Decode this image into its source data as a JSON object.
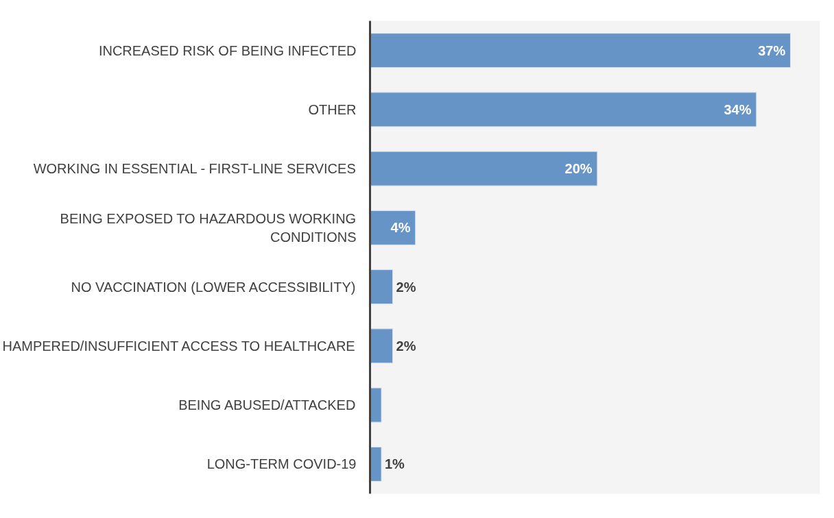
{
  "chart_data": {
    "type": "bar",
    "orientation": "horizontal",
    "color": "#6794c6",
    "categories": [
      "INCREASED RISK OF BEING INFECTED",
      "OTHER",
      "WORKING IN ESSENTIAL - FIRST-LINE SERVICES",
      "BEING EXPOSED TO HAZARDOUS WORKING CONDITIONS",
      "NO VACCINATION (LOWER ACCESSIBILITY)",
      "HAMPERED/INSUFFICIENT ACCESS TO HEALTHCARE",
      "BEING ABUSED/ATTACKED",
      "LONG-TERM COVID-19"
    ],
    "values": [
      37,
      34,
      20,
      4,
      2,
      2,
      1,
      1
    ],
    "value_labels": [
      "37%",
      "34%",
      "20%",
      "4%",
      "2%",
      "2%",
      null,
      "1%"
    ],
    "tick_labels": "y",
    "grid": false
  }
}
